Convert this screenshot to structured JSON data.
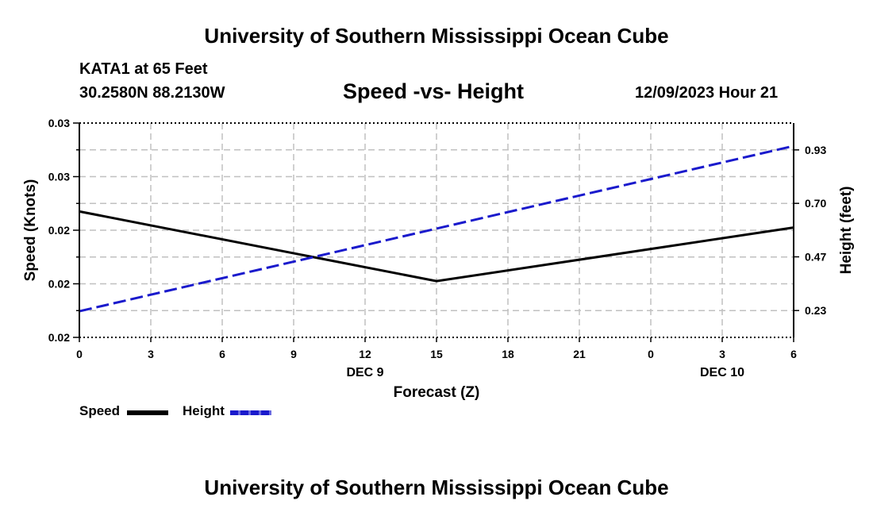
{
  "header": {
    "title": "University of Southern Mississippi Ocean Cube",
    "station": "KATA1 at 65 Feet",
    "coordinates": "30.2580N  88.2130W",
    "datetime": "12/09/2023 Hour 21",
    "bottom_title": "University of Southern Mississippi Ocean Cube"
  },
  "legend": {
    "speed_label": "Speed",
    "height_label": "Height"
  },
  "colors": {
    "speed": "#000000",
    "height": "#1a1acc",
    "grid": "#c0c0c0"
  },
  "chart_data": {
    "type": "line",
    "title": "Speed -vs- Height",
    "xlabel": "Forecast (Z)",
    "ylabel": "Speed (Knots)",
    "y2label": "Height (feet)",
    "x_tick_labels": [
      "0",
      "3",
      "6",
      "9",
      "12",
      "15",
      "18",
      "21",
      "0",
      "3",
      "6"
    ],
    "date_labels": [
      {
        "label": "DEC 9",
        "at_tick": 4
      },
      {
        "label": "DEC 10",
        "at_tick": 9
      }
    ],
    "x": [
      0,
      15,
      30
    ],
    "xlim": [
      0,
      30
    ],
    "ylim": [
      0,
      4
    ],
    "y_tick_values": [
      0,
      1,
      2,
      3,
      4
    ],
    "y_tick_labels": [
      "0.02",
      "0.02",
      "0.02",
      "0.03",
      "0.03"
    ],
    "y2lim": [
      0.116,
      1.05
    ],
    "y2_tick_values": [
      0.233,
      0.467,
      0.7,
      0.933
    ],
    "y2_tick_labels": [
      "0.23",
      "0.47",
      "0.70",
      "0.93"
    ],
    "series": [
      {
        "name": "Speed",
        "axis": "left",
        "style": "solid",
        "values": [
          2.35,
          1.05,
          2.05
        ]
      },
      {
        "name": "Height",
        "axis": "right",
        "style": "dashed",
        "values": [
          0.23,
          0.59,
          0.95
        ]
      }
    ]
  }
}
